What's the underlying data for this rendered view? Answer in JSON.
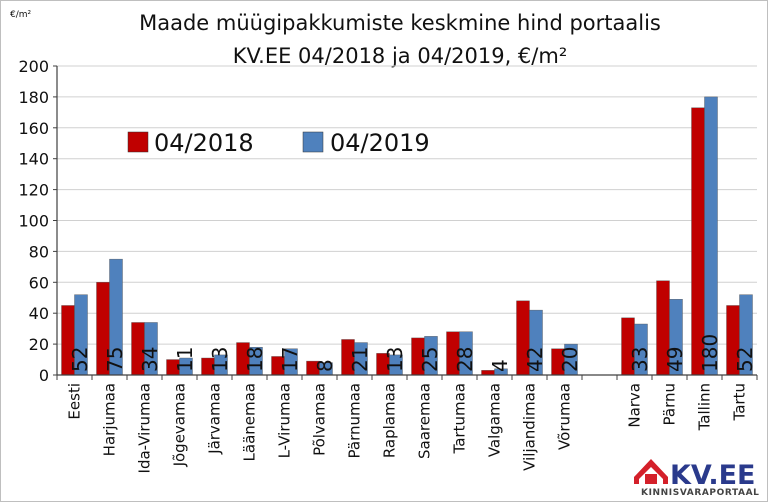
{
  "chart_data": {
    "type": "bar",
    "title": [
      "Maade müügipakkumiste keskmine hind portaalis",
      "KV.EE 04/2018 ja 04/2019, €/m²"
    ],
    "unit_label": "€/m²",
    "ylim": [
      0,
      200
    ],
    "yticks": [
      "0",
      "20",
      "40",
      "60",
      "80",
      "100",
      "120",
      "140",
      "160",
      "180",
      "200"
    ],
    "grid": true,
    "legend_position": "top-left",
    "categories": [
      "Eesti",
      "Harjumaa",
      "Ida-Virumaa",
      "Jõgevamaa",
      "Järvamaa",
      "Läänemaa",
      "L-Virumaa",
      "Põlvamaa",
      "Pärnumaa",
      "Raplamaa",
      "Saaremaa",
      "Tartumaa",
      "Valgamaa",
      "Viljandimaa",
      "Võrumaa",
      "",
      "Narva",
      "Pärnu",
      "Tallinn",
      "Tartu"
    ],
    "series": [
      {
        "name": "04/2018",
        "color": "#c00000",
        "values": [
          45,
          60,
          34,
          10,
          11,
          21,
          12,
          9,
          23,
          14,
          24,
          28,
          3,
          48,
          17,
          null,
          37,
          61,
          173,
          45
        ]
      },
      {
        "name": "04/2019",
        "color": "#4f81bd",
        "values": [
          52,
          75,
          34,
          11,
          13,
          18,
          17,
          8,
          21,
          13,
          25,
          28,
          4,
          42,
          20,
          null,
          33,
          49,
          180,
          52
        ]
      }
    ],
    "data_labels": [
      "52",
      "75",
      "34",
      "11",
      "13",
      "18",
      "17",
      "8",
      "21",
      "13",
      "25",
      "28",
      "4",
      "42",
      "20",
      "",
      "33",
      "49",
      "180",
      "52"
    ]
  },
  "logo": {
    "main": "KV.EE",
    "sub": "KINNISVARAPORTAAL",
    "color": "#2a3a8c",
    "accent": "#d4202a"
  }
}
